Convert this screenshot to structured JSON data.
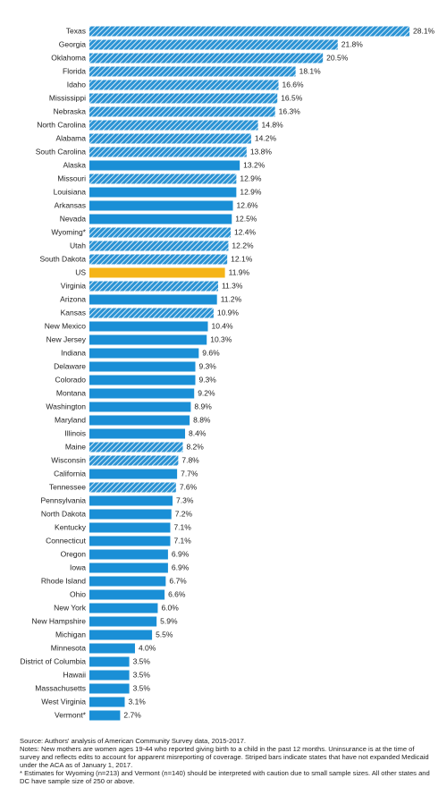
{
  "chart_data": {
    "type": "bar",
    "orientation": "horizontal",
    "categories": [
      "Texas",
      "Georgia",
      "Oklahoma",
      "Florida",
      "Idaho",
      "Mississippi",
      "Nebraska",
      "North Carolina",
      "Alabama",
      "South Carolina",
      "Alaska",
      "Missouri",
      "Louisiana",
      "Arkansas",
      "Nevada",
      "Wyoming*",
      "Utah",
      "South Dakota",
      "US",
      "Virginia",
      "Arizona",
      "Kansas",
      "New Mexico",
      "New Jersey",
      "Indiana",
      "Delaware",
      "Colorado",
      "Montana",
      "Washington",
      "Maryland",
      "Illinois",
      "Maine",
      "Wisconsin",
      "California",
      "Tennessee",
      "Pennsylvania",
      "North Dakota",
      "Kentucky",
      "Connecticut",
      "Oregon",
      "Iowa",
      "Rhode Island",
      "Ohio",
      "New York",
      "New Hampshire",
      "Michigan",
      "Minnesota",
      "District of Columbia",
      "Hawaii",
      "Massachusetts",
      "West Virginia",
      "Vermont*"
    ],
    "values": [
      28.1,
      21.8,
      20.5,
      18.1,
      16.6,
      16.5,
      16.3,
      14.8,
      14.2,
      13.8,
      13.2,
      12.9,
      12.9,
      12.6,
      12.5,
      12.4,
      12.2,
      12.1,
      11.9,
      11.3,
      11.2,
      10.9,
      10.4,
      10.3,
      9.6,
      9.3,
      9.3,
      9.2,
      8.9,
      8.8,
      8.4,
      8.2,
      7.8,
      7.7,
      7.6,
      7.3,
      7.2,
      7.1,
      7.1,
      6.9,
      6.9,
      6.7,
      6.6,
      6.0,
      5.9,
      5.5,
      4.0,
      3.5,
      3.5,
      3.5,
      3.1,
      2.7
    ],
    "value_labels": [
      "28.1%",
      "21.8%",
      "20.5%",
      "18.1%",
      "16.6%",
      "16.5%",
      "16.3%",
      "14.8%",
      "14.2%",
      "13.8%",
      "13.2%",
      "12.9%",
      "12.9%",
      "12.6%",
      "12.5%",
      "12.4%",
      "12.2%",
      "12.1%",
      "11.9%",
      "11.3%",
      "11.2%",
      "10.9%",
      "10.4%",
      "10.3%",
      "9.6%",
      "9.3%",
      "9.3%",
      "9.2%",
      "8.9%",
      "8.8%",
      "8.4%",
      "8.2%",
      "7.8%",
      "7.7%",
      "7.6%",
      "7.3%",
      "7.2%",
      "7.1%",
      "7.1%",
      "6.9%",
      "6.9%",
      "6.7%",
      "6.6%",
      "6.0%",
      "5.9%",
      "5.5%",
      "4.0%",
      "3.5%",
      "3.5%",
      "3.5%",
      "3.1%",
      "2.7%"
    ],
    "colors": [
      "#1a8fd6",
      "#1a8fd6",
      "#1a8fd6",
      "#1a8fd6",
      "#1a8fd6",
      "#1a8fd6",
      "#1a8fd6",
      "#1a8fd6",
      "#1a8fd6",
      "#1a8fd6",
      "#1a8fd6",
      "#1a8fd6",
      "#1a8fd6",
      "#1a8fd6",
      "#1a8fd6",
      "#1a8fd6",
      "#1a8fd6",
      "#1a8fd6",
      "#f5b417",
      "#1a8fd6",
      "#1a8fd6",
      "#1a8fd6",
      "#1a8fd6",
      "#1a8fd6",
      "#1a8fd6",
      "#1a8fd6",
      "#1a8fd6",
      "#1a8fd6",
      "#1a8fd6",
      "#1a8fd6",
      "#1a8fd6",
      "#1a8fd6",
      "#1a8fd6",
      "#1a8fd6",
      "#1a8fd6",
      "#1a8fd6",
      "#1a8fd6",
      "#1a8fd6",
      "#1a8fd6",
      "#1a8fd6",
      "#1a8fd6",
      "#1a8fd6",
      "#1a8fd6",
      "#1a8fd6",
      "#1a8fd6",
      "#1a8fd6",
      "#1a8fd6",
      "#1a8fd6",
      "#1a8fd6",
      "#1a8fd6",
      "#1a8fd6",
      "#1a8fd6"
    ],
    "hatched": [
      true,
      true,
      true,
      true,
      true,
      true,
      true,
      true,
      true,
      true,
      false,
      true,
      false,
      false,
      false,
      true,
      true,
      true,
      false,
      true,
      false,
      true,
      false,
      false,
      false,
      false,
      false,
      false,
      false,
      false,
      false,
      true,
      true,
      false,
      true,
      false,
      false,
      false,
      false,
      false,
      false,
      false,
      false,
      false,
      false,
      false,
      false,
      false,
      false,
      false,
      false,
      false
    ],
    "notes": [
      "Source: Authors' analysis of American Community Survey data, 2015-2017.",
      "Notes: New mothers are women ages 19-44 who reported giving birth to a child in the past 12 months. Uninsurance is at the time of survey and reflects edits to account for apparent misreporting of coverage. Striped bars indicate states that have not expanded Medicaid under the ACA as of January 1, 2017.",
      "* Estimates for Wyoming (n=213) and Vermont (n=140) should be interpreted with caution due to small sample sizes. All other states and DC have sample size of 250 or above."
    ]
  }
}
